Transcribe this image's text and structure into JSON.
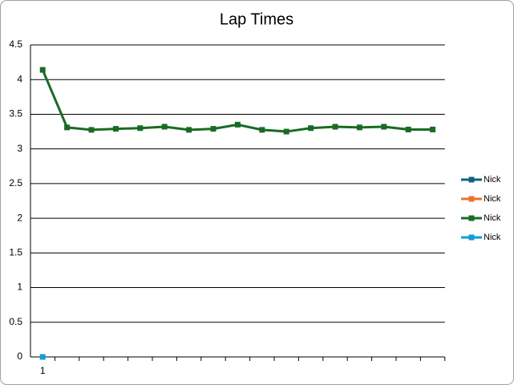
{
  "chart_data": {
    "type": "line",
    "title": "Lap Times",
    "categories": [
      "1",
      null,
      null,
      null,
      null,
      null,
      null,
      null,
      null,
      null,
      null,
      null,
      null,
      null,
      null,
      null,
      null
    ],
    "series": [
      {
        "name": "Nick",
        "color": "#156082",
        "values": [
          null,
          null,
          null,
          null,
          null,
          null,
          null,
          null,
          null,
          null,
          null,
          null,
          null,
          null,
          null,
          null,
          null
        ]
      },
      {
        "name": "Nick",
        "color": "#e97132",
        "values": [
          null,
          null,
          null,
          null,
          null,
          null,
          null,
          null,
          null,
          null,
          null,
          null,
          null,
          null,
          null,
          null,
          null
        ]
      },
      {
        "name": "Nick",
        "color": "#196b24",
        "values": [
          4.14,
          3.31,
          3.275,
          3.29,
          3.3,
          3.32,
          3.275,
          3.29,
          3.35,
          3.275,
          3.25,
          3.3,
          3.32,
          3.31,
          3.32,
          3.28,
          3.28
        ]
      },
      {
        "name": "Nick",
        "color": "#0f9ed5",
        "values": [
          0,
          null,
          null,
          null,
          null,
          null,
          null,
          null,
          null,
          null,
          null,
          null,
          null,
          null,
          null,
          null,
          null
        ]
      }
    ],
    "ylim": [
      0,
      4.5
    ],
    "yticks": [
      0,
      0.5,
      1,
      1.5,
      2,
      2.5,
      3,
      3.5,
      4,
      4.5
    ],
    "grid": true,
    "legend": "right"
  }
}
